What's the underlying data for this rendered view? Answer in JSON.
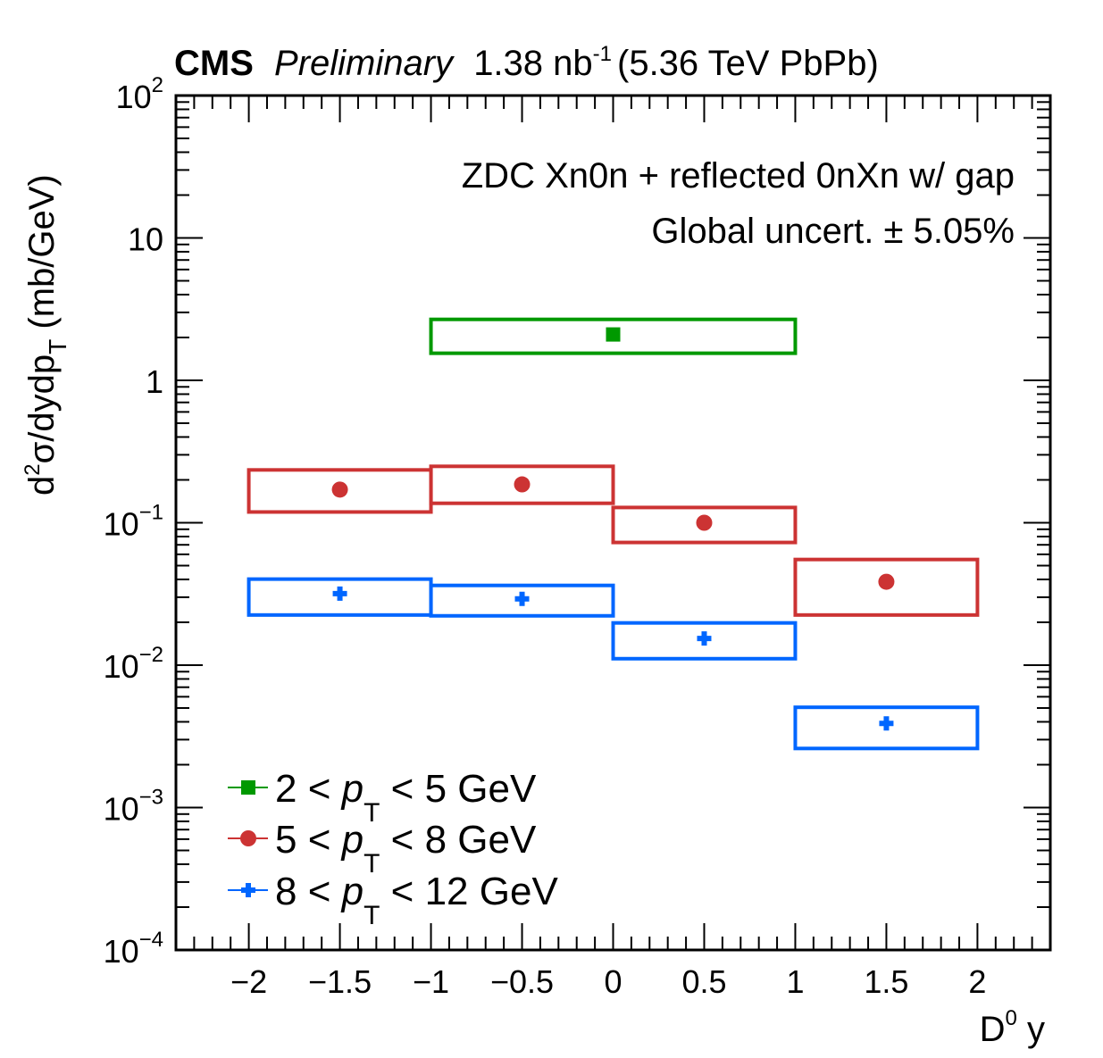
{
  "chart_data": {
    "type": "scatter",
    "header": {
      "experiment": "CMS",
      "status": "Preliminary",
      "lumi": "1.38 nb",
      "lumi_exp": "-1",
      "energy": "(5.36 TeV PbPb)"
    },
    "annotations": [
      "ZDC Xn0n + reflected 0nXn w/ gap",
      "Global uncert. ± 5.05%"
    ],
    "xlabel": "D",
    "xlabel_sup": "0",
    "xlabel_suffix": " y",
    "ylabel": "d²σ/dydp_T (mb/GeV)",
    "ylabel_parts": {
      "pre": "d",
      "sup": "2",
      "mid": "σ/dydp",
      "sub": "T",
      "post": "  (mb/GeV)"
    },
    "xlim": [
      -2.4,
      2.4
    ],
    "ylim": [
      0.0001,
      100
    ],
    "yscale": "log",
    "x_ticks": [
      -2,
      -1.5,
      -1,
      -0.5,
      0,
      0.5,
      1,
      1.5,
      2
    ],
    "x_tick_labels": [
      "−2",
      "−1.5",
      "−1",
      "−0.5",
      "0",
      "0.5",
      "1",
      "1.5",
      "2"
    ],
    "y_ticks": [
      {
        "value": 100,
        "base": "10",
        "exp": "2"
      },
      {
        "value": 10,
        "base": "10",
        "exp": ""
      },
      {
        "value": 1,
        "base": "1",
        "exp": ""
      },
      {
        "value": 0.1,
        "base": "10",
        "exp": "−1"
      },
      {
        "value": 0.01,
        "base": "10",
        "exp": "−2"
      },
      {
        "value": 0.001,
        "base": "10",
        "exp": "−3"
      },
      {
        "value": 0.0001,
        "base": "10",
        "exp": "−4"
      }
    ],
    "grid": false,
    "legend_position": "bottom-left",
    "series": [
      {
        "name": "2 < p_T < 5 GeV",
        "label_pre": "2 < ",
        "label_var": "p",
        "label_sub": "T",
        "label_post": " < 5 GeV",
        "color": "#009900",
        "marker": "square",
        "points": [
          {
            "x": 0.0,
            "xlow": -1,
            "xhigh": 1,
            "y": 2.1,
            "syst_low": 1.55,
            "syst_high": 2.68
          }
        ]
      },
      {
        "name": "5 < p_T < 8 GeV",
        "label_pre": "5 < ",
        "label_var": "p",
        "label_sub": "T",
        "label_post": " < 8 GeV",
        "color": "#cc3333",
        "marker": "circle",
        "points": [
          {
            "x": -1.5,
            "xlow": -2,
            "xhigh": -1,
            "y": 0.171,
            "syst_low": 0.119,
            "syst_high": 0.235
          },
          {
            "x": -0.5,
            "xlow": -1,
            "xhigh": 0,
            "y": 0.186,
            "syst_low": 0.137,
            "syst_high": 0.249
          },
          {
            "x": 0.5,
            "xlow": 0,
            "xhigh": 1,
            "y": 0.1,
            "syst_low": 0.0727,
            "syst_high": 0.128
          },
          {
            "x": 1.5,
            "xlow": 1,
            "xhigh": 2,
            "y": 0.0385,
            "syst_low": 0.0225,
            "syst_high": 0.0552
          }
        ]
      },
      {
        "name": "8 < p_T < 12 GeV",
        "label_pre": "8 < ",
        "label_var": "p",
        "label_sub": "T",
        "label_post": " < 12 GeV",
        "color": "#0066ff",
        "marker": "cross",
        "points": [
          {
            "x": -1.5,
            "xlow": -2,
            "xhigh": -1,
            "y": 0.0318,
            "syst_low": 0.0225,
            "syst_high": 0.0402
          },
          {
            "x": -0.5,
            "xlow": -1,
            "xhigh": 0,
            "y": 0.0292,
            "syst_low": 0.0222,
            "syst_high": 0.0363
          },
          {
            "x": 0.5,
            "xlow": 0,
            "xhigh": 1,
            "y": 0.0154,
            "syst_low": 0.0111,
            "syst_high": 0.0198
          },
          {
            "x": 1.5,
            "xlow": 1,
            "xhigh": 2,
            "y": 0.0039,
            "syst_low": 0.0026,
            "syst_high": 0.00506
          }
        ]
      }
    ]
  }
}
